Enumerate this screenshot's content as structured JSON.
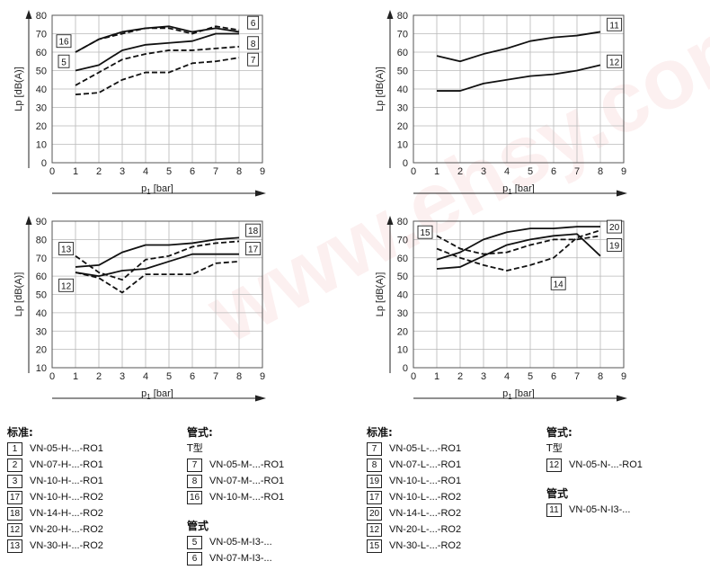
{
  "watermark": "www.ehsy.com",
  "chart_data": [
    {
      "type": "line",
      "ylabel": "Lp [dB(A)]",
      "xlabel": "p",
      "xlabel_sub": "1",
      "xlabel_unit": "[bar]",
      "xlim": [
        0,
        9
      ],
      "ylim": [
        0,
        80
      ],
      "xticks": [
        0,
        1,
        2,
        3,
        4,
        5,
        6,
        7,
        8,
        9
      ],
      "yticks": [
        0,
        10,
        20,
        30,
        40,
        50,
        60,
        70,
        80
      ],
      "grid": true,
      "series": [
        {
          "name": "6",
          "style": "dashed",
          "x": [
            1,
            2,
            3,
            4,
            5,
            6,
            7,
            8
          ],
          "y": [
            60,
            67,
            70,
            73,
            73,
            70,
            74,
            72
          ]
        },
        {
          "name": "16",
          "style": "solid",
          "x": [
            1,
            2,
            3,
            4,
            5,
            6,
            7,
            8
          ],
          "y": [
            60,
            67,
            71,
            73,
            74,
            71,
            73,
            71
          ]
        },
        {
          "name": "8",
          "style": "solid",
          "x": [
            1,
            2,
            3,
            4,
            5,
            6,
            7,
            8
          ],
          "y": [
            50,
            53,
            61,
            64,
            65,
            66,
            70,
            70
          ]
        },
        {
          "name": "5",
          "style": "dashed",
          "x": [
            1,
            2,
            3,
            4,
            5,
            6,
            7,
            8
          ],
          "y": [
            42,
            49,
            56,
            59,
            61,
            61,
            62,
            63
          ]
        },
        {
          "name": "7",
          "style": "dashed",
          "x": [
            1,
            2,
            3,
            4,
            5,
            6,
            7,
            8
          ],
          "y": [
            37,
            38,
            45,
            49,
            49,
            54,
            55,
            57
          ]
        }
      ],
      "labels": [
        {
          "text": "16",
          "x": 0.5,
          "y": 66
        },
        {
          "text": "5",
          "x": 0.5,
          "y": 55
        },
        {
          "text": "6",
          "x": 8.6,
          "y": 76
        },
        {
          "text": "8",
          "x": 8.6,
          "y": 65
        },
        {
          "text": "7",
          "x": 8.6,
          "y": 56
        }
      ]
    },
    {
      "type": "line",
      "ylabel": "Lp [dB(A)]",
      "xlabel": "p",
      "xlabel_sub": "1",
      "xlabel_unit": "[bar]",
      "xlim": [
        0,
        9
      ],
      "ylim": [
        0,
        80
      ],
      "xticks": [
        0,
        1,
        2,
        3,
        4,
        5,
        6,
        7,
        8,
        9
      ],
      "yticks": [
        0,
        10,
        20,
        30,
        40,
        50,
        60,
        70,
        80
      ],
      "grid": true,
      "series": [
        {
          "name": "11",
          "style": "solid",
          "x": [
            1,
            2,
            3,
            4,
            5,
            6,
            7,
            8
          ],
          "y": [
            58,
            55,
            59,
            62,
            66,
            68,
            69,
            71
          ]
        },
        {
          "name": "12",
          "style": "solid",
          "x": [
            1,
            2,
            3,
            4,
            5,
            6,
            7,
            8
          ],
          "y": [
            39,
            39,
            43,
            45,
            47,
            48,
            50,
            53
          ]
        }
      ],
      "labels": [
        {
          "text": "11",
          "x": 8.6,
          "y": 75
        },
        {
          "text": "12",
          "x": 8.6,
          "y": 55
        }
      ]
    },
    {
      "type": "line",
      "ylabel": "Lp [dB(A)]",
      "xlabel": "p",
      "xlabel_sub": "1",
      "xlabel_unit": "[bar]",
      "xlim": [
        0,
        9
      ],
      "ylim": [
        10,
        90
      ],
      "xticks": [
        0,
        1,
        2,
        3,
        4,
        5,
        6,
        7,
        8,
        9
      ],
      "yticks": [
        10,
        20,
        30,
        40,
        50,
        60,
        70,
        80,
        90
      ],
      "grid": true,
      "series": [
        {
          "name": "18",
          "style": "solid",
          "x": [
            1,
            2,
            3,
            4,
            5,
            6,
            7,
            8
          ],
          "y": [
            65,
            66,
            73,
            77,
            77,
            78,
            80,
            81
          ]
        },
        {
          "name": "17",
          "style": "solid",
          "x": [
            1,
            2,
            3,
            4,
            5,
            6,
            7,
            8
          ],
          "y": [
            62,
            60,
            63,
            64,
            68,
            72,
            72,
            72
          ]
        },
        {
          "name": "13",
          "style": "dashed",
          "x": [
            1,
            2,
            3,
            4,
            5,
            6,
            7,
            8
          ],
          "y": [
            71,
            62,
            58,
            69,
            71,
            76,
            78,
            79
          ]
        },
        {
          "name": "12",
          "style": "dashed",
          "x": [
            1,
            2,
            3,
            4,
            5,
            6,
            7,
            8
          ],
          "y": [
            62,
            59,
            51,
            61,
            61,
            61,
            67,
            68
          ]
        }
      ],
      "labels": [
        {
          "text": "13",
          "x": 0.6,
          "y": 75
        },
        {
          "text": "12",
          "x": 0.6,
          "y": 55
        },
        {
          "text": "18",
          "x": 8.6,
          "y": 85
        },
        {
          "text": "17",
          "x": 8.6,
          "y": 75
        }
      ]
    },
    {
      "type": "line",
      "ylabel": "Lp [dB(A)]",
      "xlabel": "p",
      "xlabel_sub": "1",
      "xlabel_unit": "[bar]",
      "xlim": [
        0,
        9
      ],
      "ylim": [
        0,
        80
      ],
      "xticks": [
        0,
        1,
        2,
        3,
        4,
        5,
        6,
        7,
        8,
        9
      ],
      "yticks": [
        0,
        10,
        20,
        30,
        40,
        50,
        60,
        70,
        80
      ],
      "grid": true,
      "series": [
        {
          "name": "20",
          "style": "solid",
          "x": [
            1,
            2,
            3,
            4,
            5,
            6,
            7,
            8
          ],
          "y": [
            59,
            63,
            70,
            74,
            76,
            76,
            77,
            77
          ]
        },
        {
          "name": "19",
          "style": "solid",
          "x": [
            1,
            2,
            3,
            4,
            5,
            6,
            7,
            8
          ],
          "y": [
            54,
            55,
            61,
            67,
            70,
            72,
            73,
            61
          ]
        },
        {
          "name": "15",
          "style": "dashed",
          "x": [
            1,
            2,
            3,
            4,
            5,
            6,
            7,
            8
          ],
          "y": [
            72,
            65,
            62,
            63,
            67,
            70,
            70,
            72
          ]
        },
        {
          "name": "14",
          "style": "dashed",
          "x": [
            1,
            2,
            3,
            4,
            5,
            6,
            7,
            8
          ],
          "y": [
            65,
            60,
            56,
            53,
            56,
            60,
            71,
            75
          ]
        }
      ],
      "labels": [
        {
          "text": "15",
          "x": 0.5,
          "y": 74
        },
        {
          "text": "14",
          "x": 6.2,
          "y": 46
        },
        {
          "text": "20",
          "x": 8.6,
          "y": 77
        },
        {
          "text": "19",
          "x": 8.6,
          "y": 67
        }
      ]
    }
  ],
  "legends": [
    {
      "heading": "标准:",
      "sub": "",
      "items": [
        {
          "num": "1",
          "label": "VN-05-H-...-RO1"
        },
        {
          "num": "2",
          "label": "VN-07-H-...-RO1"
        },
        {
          "num": "3",
          "label": "VN-10-H-...-RO1"
        },
        {
          "num": "17",
          "label": "VN-10-H-...-RO2"
        },
        {
          "num": "18",
          "label": "VN-14-H-...-RO2"
        },
        {
          "num": "12",
          "label": "VN-20-H-...-RO2"
        },
        {
          "num": "13",
          "label": "VN-30-H-...-RO2"
        }
      ]
    },
    {
      "heading": "管式:",
      "sub": "T型",
      "items": [
        {
          "num": "7",
          "label": "VN-05-M-...-RO1"
        },
        {
          "num": "8",
          "label": "VN-07-M-...-RO1"
        },
        {
          "num": "16",
          "label": "VN-10-M-...-RO1"
        }
      ],
      "heading2": "管式",
      "items2": [
        {
          "num": "5",
          "label": "VN-05-M-I3-..."
        },
        {
          "num": "6",
          "label": "VN-07-M-I3-..."
        }
      ]
    },
    {
      "heading": "标准:",
      "sub": "",
      "items": [
        {
          "num": "7",
          "label": "VN-05-L-...-RO1"
        },
        {
          "num": "8",
          "label": "VN-07-L-...-RO1"
        },
        {
          "num": "19",
          "label": "VN-10-L-...-RO1"
        },
        {
          "num": "17",
          "label": "VN-10-L-...-RO2"
        },
        {
          "num": "20",
          "label": "VN-14-L-...-RO2"
        },
        {
          "num": "12",
          "label": "VN-20-L-...-RO2"
        },
        {
          "num": "15",
          "label": "VN-30-L-...-RO2"
        }
      ]
    },
    {
      "heading": "管式:",
      "sub": "T型",
      "items": [
        {
          "num": "12",
          "label": "VN-05-N-...-RO1"
        }
      ],
      "heading2": "管式",
      "items2": [
        {
          "num": "11",
          "label": "VN-05-N-I3-..."
        }
      ]
    }
  ]
}
